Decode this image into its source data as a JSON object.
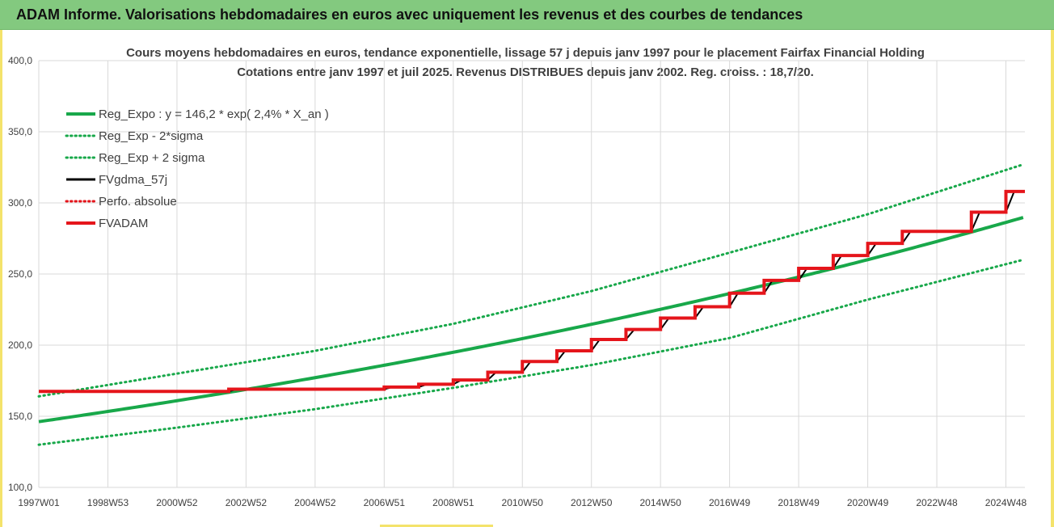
{
  "header": {
    "title": "ADAM Informe. Valorisations hebdomadaires en euros avec uniquement les revenus et des courbes de tendances"
  },
  "colors": {
    "header_bg": "#83c97f",
    "green": "#18a84a",
    "red": "#e5151b",
    "black": "#000000",
    "grid": "#d9d9d9"
  },
  "chart_data": {
    "type": "line",
    "title": "Cours moyens hebdomadaires en euros, tendance exponentielle, lissage 57 j depuis janv 1997 pour le placement Fairfax Financial Holding",
    "subtitle": "Cotations entre janv 1997 et juil 2025. Revenus DISTRIBUES depuis janv 2002. Reg. croiss. : 18,7/20.",
    "xlabel": "",
    "ylabel": "",
    "xlim": [
      1997.0,
      2025.55
    ],
    "ylim": [
      100,
      400
    ],
    "grid": true,
    "legend_position": "top-left",
    "y_ticks": [
      "100,0",
      "150,0",
      "200,0",
      "250,0",
      "300,0",
      "350,0",
      "400,0"
    ],
    "x_ticks": [
      {
        "label": "1997W01",
        "year": 1997.0
      },
      {
        "label": "1998W53",
        "year": 1999.0
      },
      {
        "label": "2000W52",
        "year": 2001.0
      },
      {
        "label": "2002W52",
        "year": 2003.0
      },
      {
        "label": "2004W52",
        "year": 2005.0
      },
      {
        "label": "2006W51",
        "year": 2007.0
      },
      {
        "label": "2008W51",
        "year": 2009.0
      },
      {
        "label": "2010W50",
        "year": 2011.0
      },
      {
        "label": "2012W50",
        "year": 2013.0
      },
      {
        "label": "2014W50",
        "year": 2015.0
      },
      {
        "label": "2016W49",
        "year": 2017.0
      },
      {
        "label": "2018W49",
        "year": 2019.0
      },
      {
        "label": "2020W49",
        "year": 2021.0
      },
      {
        "label": "2022W48",
        "year": 2023.0
      },
      {
        "label": "2024W48",
        "year": 2025.0
      }
    ],
    "regression": {
      "a": 146.2,
      "rate": 0.024
    },
    "series": [
      {
        "name": "Reg_Expo : y = 146,2 * exp( 2,4% *  X_an )",
        "key": "reg",
        "color": "#18a84a",
        "style": "solid"
      },
      {
        "name": "Reg_Exp - 2*sigma",
        "key": "low",
        "color": "#18a84a",
        "style": "dotted",
        "x": [
          1997,
          2001,
          2005,
          2009,
          2013,
          2017,
          2021,
          2025.5
        ],
        "y": [
          130,
          142,
          155,
          170,
          186,
          205,
          232,
          260
        ]
      },
      {
        "name": "Reg_Exp + 2 sigma",
        "key": "high",
        "color": "#18a84a",
        "style": "dotted",
        "x": [
          1997,
          2001,
          2005,
          2009,
          2013,
          2017,
          2021,
          2025.5
        ],
        "y": [
          164,
          180,
          196,
          215,
          238,
          265,
          292,
          327
        ]
      },
      {
        "name": "FVgdma_57j",
        "key": "sma",
        "color": "#000000",
        "style": "solid"
      },
      {
        "name": "Perfo. absolue",
        "key": "perf",
        "color": "#e5151b",
        "style": "dotted"
      },
      {
        "name": "FVADAM",
        "key": "fvadam",
        "color": "#e5151b",
        "style": "solid",
        "start_value": 167.5,
        "steps": [
          {
            "x": 2002.5,
            "y": 169
          },
          {
            "x": 2007.0,
            "y": 170.5
          },
          {
            "x": 2008.0,
            "y": 172.5
          },
          {
            "x": 2009.0,
            "y": 175.5
          },
          {
            "x": 2010.0,
            "y": 181
          },
          {
            "x": 2011.0,
            "y": 188.5
          },
          {
            "x": 2012.0,
            "y": 196
          },
          {
            "x": 2013.0,
            "y": 204
          },
          {
            "x": 2014.0,
            "y": 211
          },
          {
            "x": 2015.0,
            "y": 219
          },
          {
            "x": 2016.0,
            "y": 227
          },
          {
            "x": 2017.0,
            "y": 236.5
          },
          {
            "x": 2018.0,
            "y": 245.5
          },
          {
            "x": 2019.0,
            "y": 254
          },
          {
            "x": 2020.0,
            "y": 263
          },
          {
            "x": 2021.0,
            "y": 271.5
          },
          {
            "x": 2022.0,
            "y": 280
          },
          {
            "x": 2024.0,
            "y": 293.5
          },
          {
            "x": 2025.0,
            "y": 308
          }
        ],
        "end_x": 2025.55
      }
    ]
  }
}
